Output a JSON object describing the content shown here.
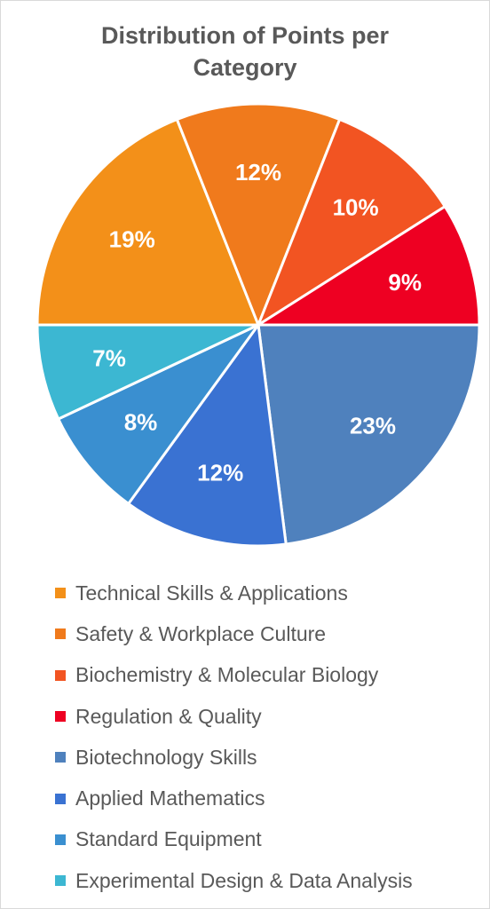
{
  "chart_data": {
    "type": "pie",
    "title_lines": [
      "Distribution of Points per",
      "Category"
    ],
    "start_angle_deg": 0,
    "direction": "clockwise",
    "label_format": "percent",
    "legend_position": "bottom",
    "slices": [
      {
        "name": "Technical Skills & Applications",
        "label": "19%",
        "value": 19,
        "color": "#F39019"
      },
      {
        "name": "Safety & Workplace Culture",
        "label": "12%",
        "value": 12,
        "color": "#F07A1C"
      },
      {
        "name": "Biochemistry & Molecular Biology",
        "label": "10%",
        "value": 10,
        "color": "#F25422"
      },
      {
        "name": "Regulation & Quality",
        "label": "9%",
        "value": 9,
        "color": "#EE0022"
      },
      {
        "name": "Biotechnology Skills",
        "label": "23%",
        "value": 23,
        "color": "#4F81BD"
      },
      {
        "name": "Applied Mathematics",
        "label": "12%",
        "value": 12,
        "color": "#3A72D2"
      },
      {
        "name": "Standard Equipment",
        "label": "8%",
        "value": 8,
        "color": "#3A8FD0"
      },
      {
        "name": "Experimental Design & Data Analysis",
        "label": "7%",
        "value": 7,
        "color": "#3CB7D2"
      }
    ]
  }
}
